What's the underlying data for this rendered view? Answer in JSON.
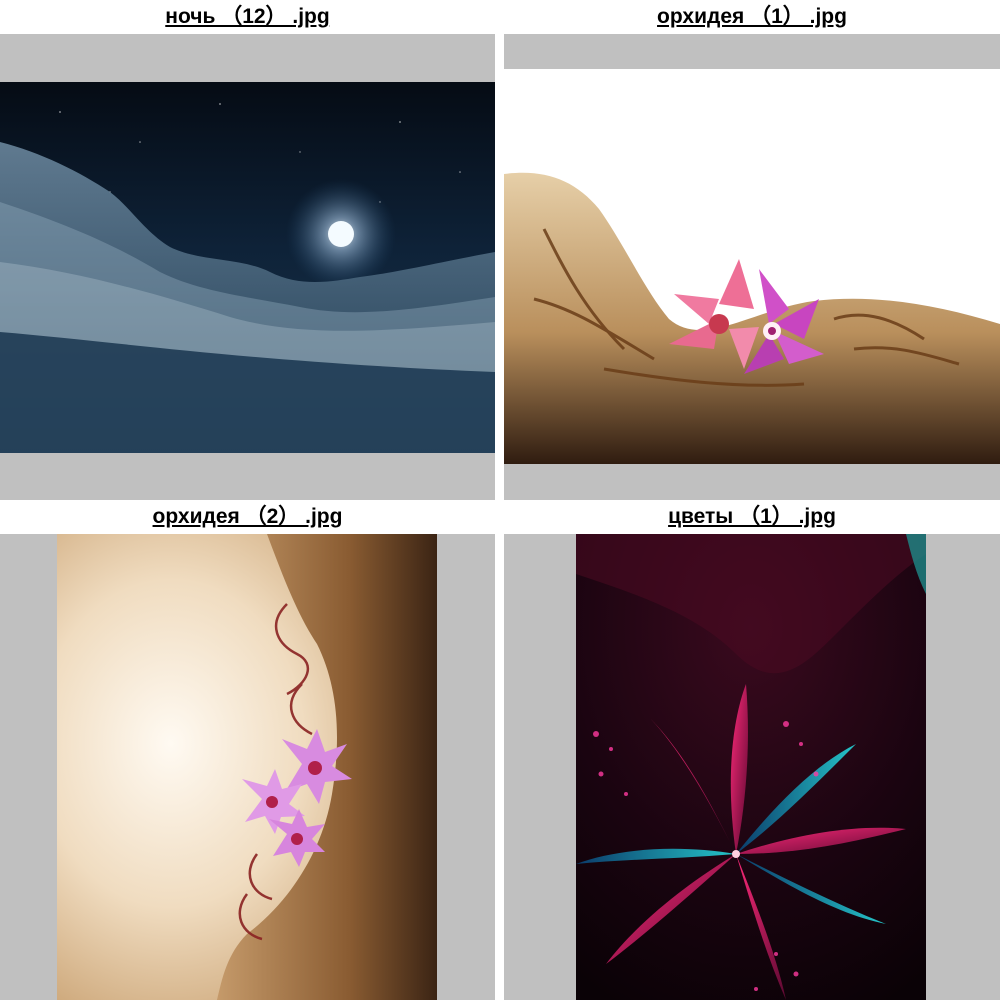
{
  "gallery": {
    "items": [
      {
        "filename": "ночь （12） .jpg",
        "subject": "night-clouds-moon"
      },
      {
        "filename": "орхидея （1） .jpg",
        "subject": "orchid-body-art"
      },
      {
        "filename": "орхидея （2） .jpg",
        "subject": "lotus-body-art"
      },
      {
        "filename": "цветы （1） .jpg",
        "subject": "fractal-flower"
      }
    ]
  },
  "colors": {
    "letterbox": "#c0c0c0",
    "background": "#ffffff",
    "caption_text": "#000000"
  }
}
